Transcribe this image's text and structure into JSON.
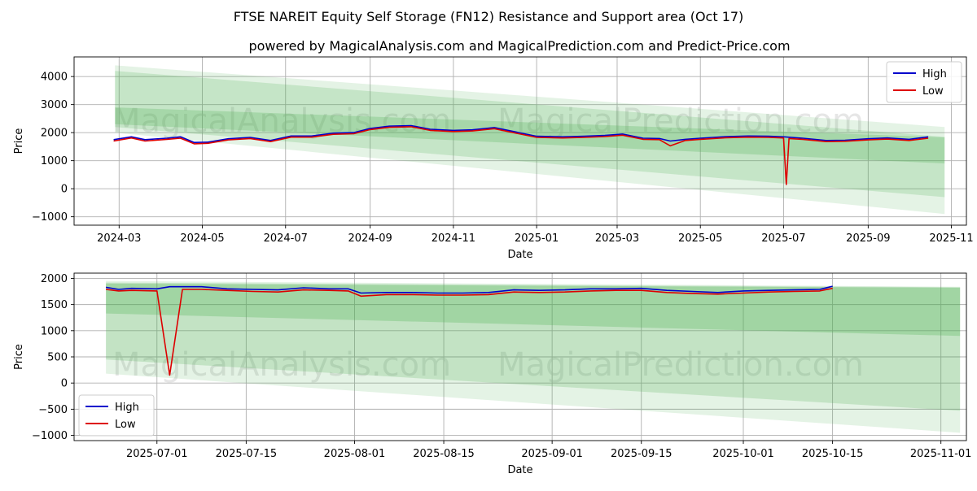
{
  "title": "FTSE NAREIT Equity Self Storage (FN12) Resistance and Support area (Oct 17)",
  "subtitle": "powered by MagicalAnalysis.com and MagicalPrediction.com and Predict-Price.com",
  "watermark_left": "MagicalAnalysis.com",
  "watermark_right": "MagicalPrediction.com",
  "colors": {
    "high": "#0000cc",
    "low": "#dd0000",
    "band": "#4caf50"
  },
  "chart_data": [
    {
      "type": "line",
      "title": "",
      "xlabel": "Date",
      "ylabel": "Price",
      "xlim": [
        "2024-01-28",
        "2025-11-12"
      ],
      "ylim": [
        -1300,
        4700
      ],
      "grid": true,
      "legend": "top-right",
      "x_ticks": [
        "2024-03",
        "2024-05",
        "2024-07",
        "2024-09",
        "2024-11",
        "2025-01",
        "2025-03",
        "2025-05",
        "2025-07",
        "2025-09",
        "2025-11"
      ],
      "y_ticks": [
        -1000,
        0,
        1000,
        2000,
        3000,
        4000
      ],
      "y_tick_labels": [
        "−1000",
        "0",
        "1000",
        "2000",
        "3000",
        "4000"
      ],
      "bands": [
        {
          "x": [
            "2024-02-27",
            "2025-10-27"
          ],
          "upper": [
            4400,
            2200
          ],
          "lower": [
            2000,
            -900
          ],
          "opacity": 0.15
        },
        {
          "x": [
            "2024-02-27",
            "2025-10-27"
          ],
          "upper": [
            4200,
            1850
          ],
          "lower": [
            2200,
            -300
          ],
          "opacity": 0.2
        },
        {
          "x": [
            "2024-02-27",
            "2025-10-27"
          ],
          "upper": [
            2900,
            1830
          ],
          "lower": [
            2300,
            900
          ],
          "opacity": 0.25
        }
      ],
      "series": [
        {
          "name": "High",
          "x": [
            "2024-02-26",
            "2024-03-10",
            "2024-03-20",
            "2024-04-05",
            "2024-04-15",
            "2024-04-25",
            "2024-05-05",
            "2024-05-20",
            "2024-06-05",
            "2024-06-20",
            "2024-07-05",
            "2024-07-20",
            "2024-08-05",
            "2024-08-20",
            "2024-09-01",
            "2024-09-15",
            "2024-10-01",
            "2024-10-15",
            "2024-11-01",
            "2024-11-15",
            "2024-12-01",
            "2024-12-20",
            "2025-01-01",
            "2025-01-20",
            "2025-02-05",
            "2025-02-20",
            "2025-03-05",
            "2025-03-20",
            "2025-04-01",
            "2025-04-09",
            "2025-04-20",
            "2025-05-01",
            "2025-05-20",
            "2025-06-05",
            "2025-06-20",
            "2025-07-01",
            "2025-07-15",
            "2025-08-01",
            "2025-08-15",
            "2025-09-01",
            "2025-09-15",
            "2025-10-01",
            "2025-10-15"
          ],
          "values": [
            1750,
            1850,
            1750,
            1800,
            1850,
            1650,
            1660,
            1780,
            1830,
            1720,
            1880,
            1880,
            1980,
            2000,
            2150,
            2230,
            2250,
            2120,
            2080,
            2100,
            2180,
            1990,
            1870,
            1850,
            1870,
            1900,
            1950,
            1800,
            1790,
            1700,
            1760,
            1800,
            1860,
            1880,
            1870,
            1850,
            1800,
            1720,
            1730,
            1780,
            1810,
            1760,
            1850
          ]
        },
        {
          "name": "Low",
          "x": [
            "2024-02-26",
            "2024-03-10",
            "2024-03-20",
            "2024-04-05",
            "2024-04-15",
            "2024-04-25",
            "2024-05-05",
            "2024-05-20",
            "2024-06-05",
            "2024-06-20",
            "2024-07-05",
            "2024-07-20",
            "2024-08-05",
            "2024-08-20",
            "2024-09-01",
            "2024-09-15",
            "2024-10-01",
            "2024-10-15",
            "2024-11-01",
            "2024-11-15",
            "2024-12-01",
            "2024-12-20",
            "2025-01-01",
            "2025-01-20",
            "2025-02-05",
            "2025-02-20",
            "2025-03-05",
            "2025-03-20",
            "2025-04-01",
            "2025-04-09",
            "2025-04-20",
            "2025-05-01",
            "2025-05-20",
            "2025-06-05",
            "2025-06-20",
            "2025-07-01",
            "2025-07-03",
            "2025-07-05",
            "2025-07-15",
            "2025-08-01",
            "2025-08-15",
            "2025-09-01",
            "2025-09-15",
            "2025-10-01",
            "2025-10-15"
          ],
          "values": [
            1700,
            1810,
            1700,
            1760,
            1800,
            1600,
            1620,
            1740,
            1790,
            1680,
            1840,
            1840,
            1940,
            1960,
            2110,
            2190,
            2210,
            2080,
            2040,
            2060,
            2140,
            1950,
            1830,
            1810,
            1830,
            1860,
            1910,
            1760,
            1750,
            1530,
            1720,
            1760,
            1820,
            1840,
            1830,
            1810,
            150,
            1790,
            1760,
            1680,
            1690,
            1740,
            1770,
            1720,
            1800
          ]
        }
      ]
    },
    {
      "type": "line",
      "title": "",
      "xlabel": "Date",
      "ylabel": "Price",
      "xlim": [
        "2025-06-18",
        "2025-11-05"
      ],
      "ylim": [
        -1100,
        2100
      ],
      "grid": true,
      "legend": "bottom-left",
      "x_ticks": [
        "2025-07-01",
        "2025-07-15",
        "2025-08-01",
        "2025-08-15",
        "2025-09-01",
        "2025-09-15",
        "2025-10-01",
        "2025-10-15",
        "2025-11-01"
      ],
      "y_ticks": [
        -1000,
        -500,
        0,
        500,
        1000,
        1500,
        2000
      ],
      "y_tick_labels": [
        "−1000",
        "−500",
        "0",
        "500",
        "1000",
        "1500",
        "2000"
      ],
      "bands": [
        {
          "x": [
            "2025-06-23",
            "2025-11-04"
          ],
          "upper": [
            1950,
            1840
          ],
          "lower": [
            180,
            -950
          ],
          "opacity": 0.15
        },
        {
          "x": [
            "2025-06-23",
            "2025-11-04"
          ],
          "upper": [
            1920,
            1830
          ],
          "lower": [
            450,
            -530
          ],
          "opacity": 0.22
        },
        {
          "x": [
            "2025-06-23",
            "2025-11-04"
          ],
          "upper": [
            1900,
            1820
          ],
          "lower": [
            1330,
            900
          ],
          "opacity": 0.28
        }
      ],
      "series": [
        {
          "name": "High",
          "x": [
            "2025-06-23",
            "2025-06-25",
            "2025-06-27",
            "2025-07-01",
            "2025-07-03",
            "2025-07-05",
            "2025-07-08",
            "2025-07-12",
            "2025-07-16",
            "2025-07-20",
            "2025-07-24",
            "2025-07-28",
            "2025-07-31",
            "2025-08-02",
            "2025-08-06",
            "2025-08-10",
            "2025-08-14",
            "2025-08-18",
            "2025-08-22",
            "2025-08-26",
            "2025-08-30",
            "2025-09-03",
            "2025-09-07",
            "2025-09-11",
            "2025-09-15",
            "2025-09-19",
            "2025-09-23",
            "2025-09-27",
            "2025-10-01",
            "2025-10-05",
            "2025-10-09",
            "2025-10-13",
            "2025-10-15"
          ],
          "values": [
            1830,
            1790,
            1810,
            1800,
            1840,
            1840,
            1840,
            1800,
            1790,
            1780,
            1820,
            1800,
            1800,
            1720,
            1730,
            1730,
            1720,
            1720,
            1730,
            1780,
            1770,
            1780,
            1800,
            1800,
            1810,
            1770,
            1750,
            1730,
            1760,
            1770,
            1780,
            1790,
            1850
          ]
        },
        {
          "name": "Low",
          "x": [
            "2025-06-23",
            "2025-06-25",
            "2025-06-27",
            "2025-07-01",
            "2025-07-03",
            "2025-07-05",
            "2025-07-08",
            "2025-07-12",
            "2025-07-16",
            "2025-07-20",
            "2025-07-24",
            "2025-07-28",
            "2025-07-31",
            "2025-08-02",
            "2025-08-06",
            "2025-08-10",
            "2025-08-14",
            "2025-08-18",
            "2025-08-22",
            "2025-08-26",
            "2025-08-30",
            "2025-09-03",
            "2025-09-07",
            "2025-09-11",
            "2025-09-15",
            "2025-09-19",
            "2025-09-23",
            "2025-09-27",
            "2025-10-01",
            "2025-10-05",
            "2025-10-09",
            "2025-10-13",
            "2025-10-15"
          ],
          "values": [
            1790,
            1760,
            1770,
            1760,
            150,
            1790,
            1790,
            1770,
            1750,
            1740,
            1780,
            1770,
            1760,
            1660,
            1690,
            1690,
            1680,
            1680,
            1690,
            1740,
            1730,
            1740,
            1760,
            1770,
            1770,
            1730,
            1710,
            1700,
            1720,
            1740,
            1750,
            1760,
            1810
          ]
        }
      ]
    }
  ]
}
